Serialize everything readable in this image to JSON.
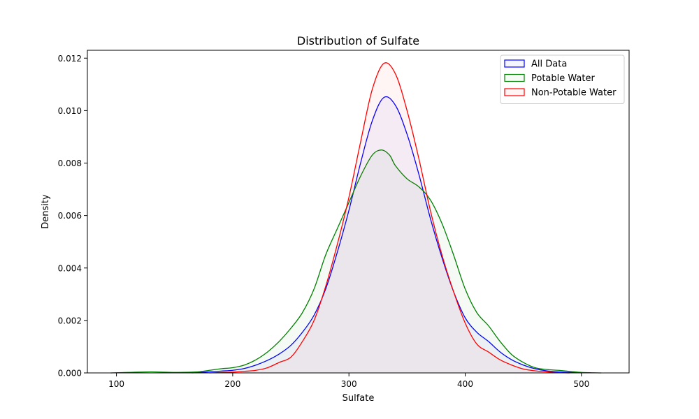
{
  "chart_data": {
    "type": "area",
    "title": "Distribution of Sulfate",
    "xlabel": "Sulfate",
    "ylabel": "Density",
    "xlim": [
      75,
      541
    ],
    "ylim": [
      0,
      0.0123
    ],
    "xticks": [
      {
        "value": 100,
        "label": "100"
      },
      {
        "value": 200,
        "label": "200"
      },
      {
        "value": 300,
        "label": "300"
      },
      {
        "value": 400,
        "label": "400"
      },
      {
        "value": 500,
        "label": "500"
      }
    ],
    "yticks": [
      {
        "value": 0.0,
        "label": "0.000"
      },
      {
        "value": 0.002,
        "label": "0.002"
      },
      {
        "value": 0.004,
        "label": "0.004"
      },
      {
        "value": 0.006,
        "label": "0.006"
      },
      {
        "value": 0.008,
        "label": "0.008"
      },
      {
        "value": 0.01,
        "label": "0.010"
      },
      {
        "value": 0.012,
        "label": "0.012"
      }
    ],
    "grid": false,
    "legend": {
      "position": "top-right"
    },
    "series": [
      {
        "name": "All Data",
        "color": "#0000ff",
        "fill": "rgba(0,0,255,0.04)",
        "points": [
          [
            165,
            0
          ],
          [
            180,
            4e-05
          ],
          [
            190,
            7e-05
          ],
          [
            200,
            0.0001
          ],
          [
            210,
            0.00017
          ],
          [
            220,
            0.0003
          ],
          [
            230,
            0.00048
          ],
          [
            240,
            0.00072
          ],
          [
            250,
            0.00105
          ],
          [
            260,
            0.00155
          ],
          [
            270,
            0.0022
          ],
          [
            280,
            0.0032
          ],
          [
            290,
            0.0046
          ],
          [
            300,
            0.0062
          ],
          [
            310,
            0.008
          ],
          [
            320,
            0.0096
          ],
          [
            330,
            0.0105
          ],
          [
            340,
            0.0102
          ],
          [
            350,
            0.0091
          ],
          [
            360,
            0.0076
          ],
          [
            370,
            0.0059
          ],
          [
            380,
            0.0044
          ],
          [
            390,
            0.0031
          ],
          [
            400,
            0.0021
          ],
          [
            410,
            0.00155
          ],
          [
            420,
            0.0012
          ],
          [
            430,
            0.0008
          ],
          [
            440,
            0.0005
          ],
          [
            450,
            0.0003
          ],
          [
            460,
            0.00016
          ],
          [
            470,
            8e-05
          ],
          [
            480,
            4e-05
          ],
          [
            490,
            2e-05
          ],
          [
            500,
            0
          ]
        ]
      },
      {
        "name": "Potable Water",
        "color": "#008000",
        "fill": "rgba(0,128,0,0.04)",
        "points": [
          [
            95,
            0
          ],
          [
            110,
            2e-05
          ],
          [
            130,
            4e-05
          ],
          [
            150,
            2e-05
          ],
          [
            170,
            4e-05
          ],
          [
            180,
            0.0001
          ],
          [
            190,
            0.00016
          ],
          [
            200,
            0.0002
          ],
          [
            210,
            0.0003
          ],
          [
            220,
            0.0005
          ],
          [
            230,
            0.0008
          ],
          [
            240,
            0.0012
          ],
          [
            250,
            0.0017
          ],
          [
            260,
            0.0023
          ],
          [
            270,
            0.0032
          ],
          [
            280,
            0.0045
          ],
          [
            290,
            0.0055
          ],
          [
            300,
            0.0065
          ],
          [
            310,
            0.0075
          ],
          [
            320,
            0.0083
          ],
          [
            328,
            0.0085
          ],
          [
            335,
            0.0083
          ],
          [
            340,
            0.0079
          ],
          [
            350,
            0.0074
          ],
          [
            360,
            0.0071
          ],
          [
            370,
            0.0066
          ],
          [
            380,
            0.0057
          ],
          [
            390,
            0.0045
          ],
          [
            400,
            0.0032
          ],
          [
            410,
            0.0023
          ],
          [
            420,
            0.0018
          ],
          [
            430,
            0.0012
          ],
          [
            440,
            0.0007
          ],
          [
            450,
            0.0004
          ],
          [
            460,
            0.0002
          ],
          [
            470,
            0.00013
          ],
          [
            480,
            0.0001
          ],
          [
            490,
            6e-05
          ],
          [
            500,
            2e-05
          ],
          [
            517,
            0
          ]
        ]
      },
      {
        "name": "Non-Potable Water",
        "color": "#ff0000",
        "fill": "rgba(255,0,0,0.04)",
        "points": [
          [
            180,
            0
          ],
          [
            200,
            3e-05
          ],
          [
            210,
            6e-05
          ],
          [
            220,
            0.0001
          ],
          [
            230,
            0.0002
          ],
          [
            240,
            0.0004
          ],
          [
            250,
            0.0006
          ],
          [
            260,
            0.0012
          ],
          [
            270,
            0.002
          ],
          [
            280,
            0.0033
          ],
          [
            290,
            0.0049
          ],
          [
            300,
            0.0067
          ],
          [
            310,
            0.0088
          ],
          [
            320,
            0.0108
          ],
          [
            330,
            0.0118
          ],
          [
            340,
            0.0114
          ],
          [
            350,
            0.01
          ],
          [
            360,
            0.0082
          ],
          [
            370,
            0.0062
          ],
          [
            380,
            0.0045
          ],
          [
            390,
            0.0031
          ],
          [
            400,
            0.0019
          ],
          [
            410,
            0.0011
          ],
          [
            420,
            0.0008
          ],
          [
            430,
            0.0005
          ],
          [
            440,
            0.0003
          ],
          [
            450,
            0.00015
          ],
          [
            460,
            8e-05
          ],
          [
            470,
            4e-05
          ],
          [
            480,
            1e-05
          ],
          [
            490,
            0
          ]
        ]
      }
    ]
  }
}
